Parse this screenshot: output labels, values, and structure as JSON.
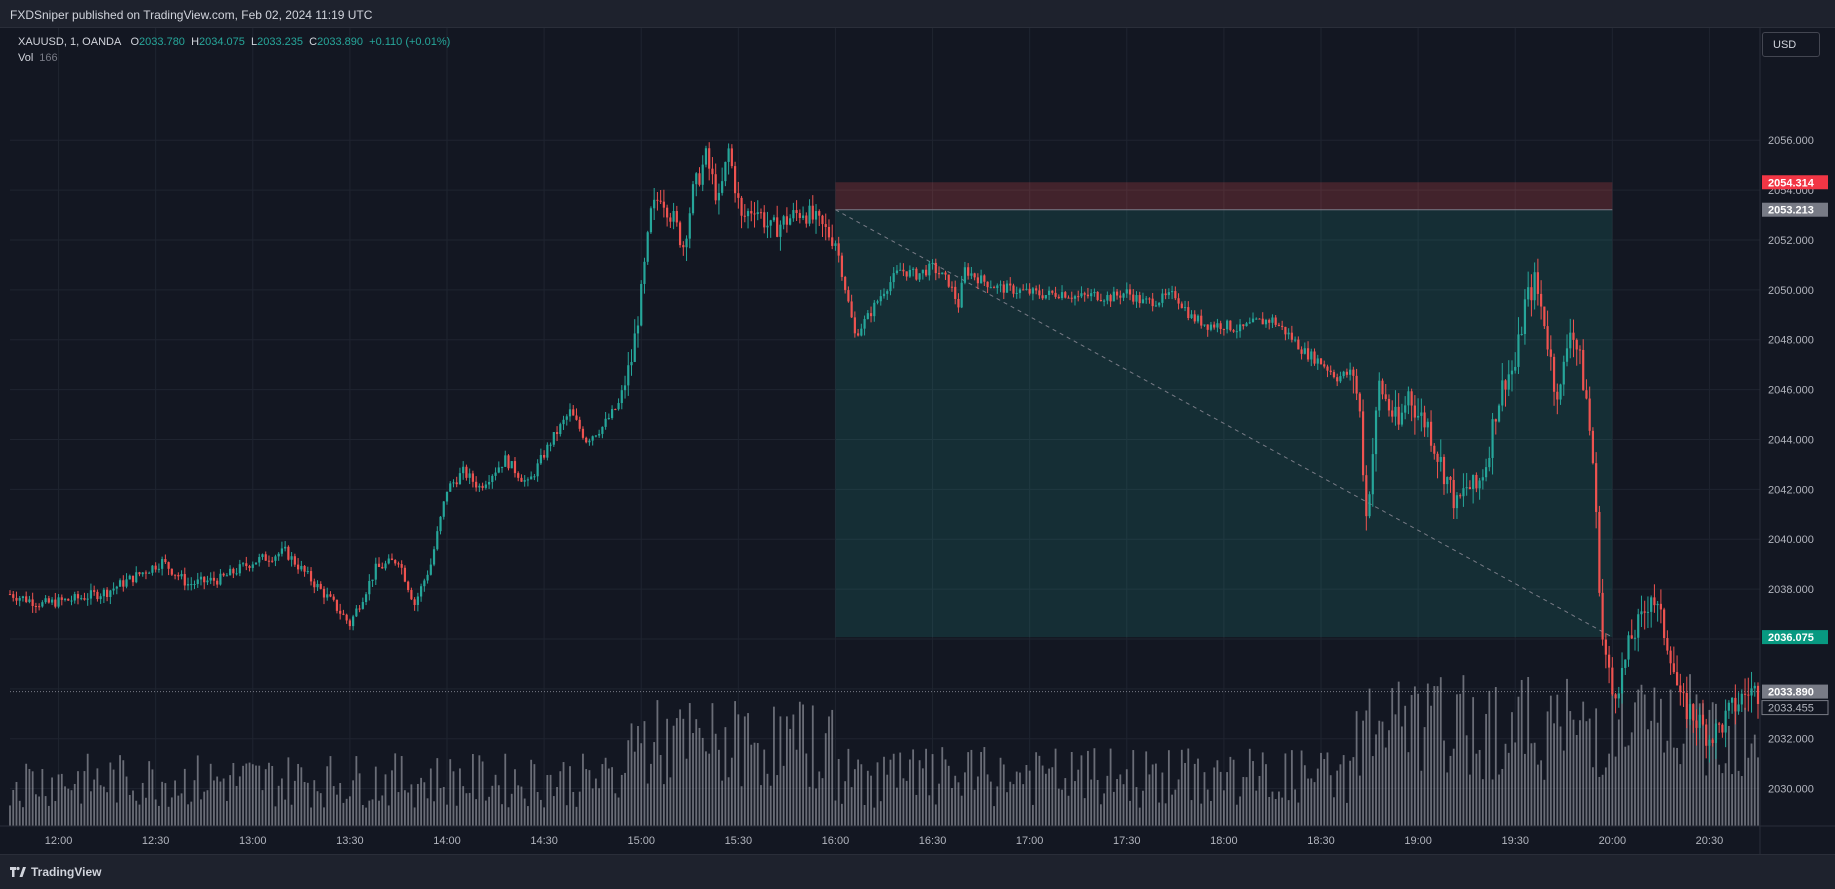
{
  "header": {
    "publisher": "FXDSniper published on TradingView.com, Feb 02, 2024 11:19 UTC"
  },
  "footer": {
    "brand": "TradingView",
    "logo_icon": "tradingview-logo-icon"
  },
  "currency_button": "USD",
  "legend": {
    "symbol": "XAUUSD, 1, OANDA",
    "o_label": "O",
    "o": "2033.780",
    "h_label": "H",
    "h": "2034.075",
    "l_label": "L",
    "l": "2033.235",
    "c_label": "C",
    "c": "2033.890",
    "change": "+0.110 (+0.01%)",
    "vol_label": "Vol",
    "vol_value": "166"
  },
  "colors": {
    "background": "#131722",
    "up": "#26a69a",
    "down": "#ef5350",
    "stop_zone": "#ef5350",
    "target_zone": "#26a69a",
    "grid": "#1f2430"
  },
  "chart_data": {
    "type": "candlestick",
    "symbol": "XAUUSD",
    "interval": "1",
    "ylim": [
      2028.5,
      2060.5
    ],
    "y_ticks": [
      2030,
      2032,
      2034,
      2036,
      2038,
      2040,
      2042,
      2044,
      2046,
      2048,
      2050,
      2052,
      2054,
      2056
    ],
    "y_tick_labels": [
      "2030.000",
      "2032.000",
      "2034.000",
      "2036.000",
      "2038.000",
      "2040.000",
      "2042.000",
      "2044.000",
      "2046.000",
      "2048.000",
      "2050.000",
      "2052.000",
      "2054.000",
      "2056.000"
    ],
    "x_tick_labels": [
      "12:00",
      "12:30",
      "13:00",
      "13:30",
      "14:00",
      "14:30",
      "15:00",
      "15:30",
      "16:00",
      "16:30",
      "17:00",
      "17:30",
      "18:00",
      "18:30",
      "19:00",
      "19:30",
      "20:00",
      "20:30"
    ],
    "x_start_minute": 705,
    "x_end_minute": 1245,
    "close_path": [
      [
        705,
        2037.8
      ],
      [
        715,
        2037.4
      ],
      [
        725,
        2037.6
      ],
      [
        735,
        2037.9
      ],
      [
        745,
        2038.6
      ],
      [
        752,
        2039.1
      ],
      [
        760,
        2038.2
      ],
      [
        770,
        2038.4
      ],
      [
        780,
        2039.1
      ],
      [
        790,
        2039.5
      ],
      [
        800,
        2038.1
      ],
      [
        805,
        2037.4
      ],
      [
        810,
        2036.6
      ],
      [
        818,
        2038.8
      ],
      [
        825,
        2039.2
      ],
      [
        830,
        2037.4
      ],
      [
        835,
        2039.0
      ],
      [
        840,
        2042.0
      ],
      [
        845,
        2042.7
      ],
      [
        850,
        2042.1
      ],
      [
        858,
        2043.2
      ],
      [
        865,
        2042.2
      ],
      [
        872,
        2043.9
      ],
      [
        878,
        2045.1
      ],
      [
        883,
        2044.0
      ],
      [
        888,
        2044.5
      ],
      [
        893,
        2045.4
      ],
      [
        897,
        2047.2
      ],
      [
        900,
        2049.8
      ],
      [
        903,
        2053.0
      ],
      [
        906,
        2053.9
      ],
      [
        910,
        2052.8
      ],
      [
        913,
        2051.8
      ],
      [
        916,
        2053.9
      ],
      [
        920,
        2055.3
      ],
      [
        924,
        2053.5
      ],
      [
        927,
        2055.6
      ],
      [
        931,
        2052.8
      ],
      [
        935,
        2053.4
      ],
      [
        940,
        2052.4
      ],
      [
        945,
        2052.8
      ],
      [
        950,
        2053.2
      ],
      [
        955,
        2052.6
      ],
      [
        960,
        2052.0
      ],
      [
        963,
        2050.1
      ],
      [
        966,
        2048.2
      ],
      [
        970,
        2048.9
      ],
      [
        975,
        2050.0
      ],
      [
        980,
        2050.8
      ],
      [
        985,
        2050.6
      ],
      [
        990,
        2050.9
      ],
      [
        995,
        2050.3
      ],
      [
        998,
        2049.4
      ],
      [
        1000,
        2050.8
      ],
      [
        1005,
        2050.4
      ],
      [
        1010,
        2050.1
      ],
      [
        1015,
        2050.0
      ],
      [
        1020,
        2049.9
      ],
      [
        1025,
        2049.8
      ],
      [
        1030,
        2049.9
      ],
      [
        1035,
        2049.7
      ],
      [
        1040,
        2049.8
      ],
      [
        1045,
        2049.7
      ],
      [
        1050,
        2049.9
      ],
      [
        1055,
        2049.5
      ],
      [
        1060,
        2049.6
      ],
      [
        1065,
        2049.8
      ],
      [
        1070,
        2048.9
      ],
      [
        1075,
        2048.6
      ],
      [
        1080,
        2048.6
      ],
      [
        1085,
        2048.4
      ],
      [
        1090,
        2048.7
      ],
      [
        1095,
        2048.8
      ],
      [
        1100,
        2048.2
      ],
      [
        1105,
        2047.5
      ],
      [
        1110,
        2047.1
      ],
      [
        1115,
        2046.5
      ],
      [
        1120,
        2046.7
      ],
      [
        1122,
        2045.0
      ],
      [
        1124,
        2040.9
      ],
      [
        1126,
        2043.5
      ],
      [
        1128,
        2046.2
      ],
      [
        1131,
        2045.3
      ],
      [
        1134,
        2044.5
      ],
      [
        1137,
        2045.9
      ],
      [
        1140,
        2045.0
      ],
      [
        1143,
        2044.6
      ],
      [
        1146,
        2043.4
      ],
      [
        1149,
        2042.4
      ],
      [
        1152,
        2041.3
      ],
      [
        1155,
        2042.1
      ],
      [
        1158,
        2042.0
      ],
      [
        1161,
        2043.1
      ],
      [
        1164,
        2045.2
      ],
      [
        1167,
        2046.5
      ],
      [
        1170,
        2046.9
      ],
      [
        1173,
        2049.4
      ],
      [
        1176,
        2050.3
      ],
      [
        1179,
        2048.8
      ],
      [
        1182,
        2046.3
      ],
      [
        1184,
        2045.9
      ],
      [
        1187,
        2048.7
      ],
      [
        1190,
        2047.1
      ],
      [
        1192,
        2045.6
      ],
      [
        1194,
        2043.1
      ],
      [
        1197,
        2036.0
      ],
      [
        1200,
        2033.8
      ],
      [
        1203,
        2034.6
      ],
      [
        1206,
        2036.1
      ],
      [
        1209,
        2036.7
      ],
      [
        1212,
        2037.9
      ],
      [
        1215,
        2036.7
      ],
      [
        1218,
        2035.5
      ],
      [
        1221,
        2033.4
      ],
      [
        1224,
        2033.1
      ],
      [
        1227,
        2032.6
      ],
      [
        1230,
        2032.1
      ],
      [
        1233,
        2032.4
      ],
      [
        1236,
        2033.0
      ],
      [
        1239,
        2033.5
      ],
      [
        1242,
        2033.9
      ]
    ],
    "volume": {
      "label": "Vol",
      "last": 166,
      "pane_max": 520
    },
    "position": {
      "type": "short",
      "entry": 2053.213,
      "stop": 2054.314,
      "target": 2036.075,
      "start_minute": 960,
      "end_minute": 1200,
      "entry_label": "2053.213",
      "stop_label": "2054.314",
      "target_label": "2036.075"
    },
    "price_labels": {
      "last": "2033.890",
      "second": "2033.455"
    }
  }
}
